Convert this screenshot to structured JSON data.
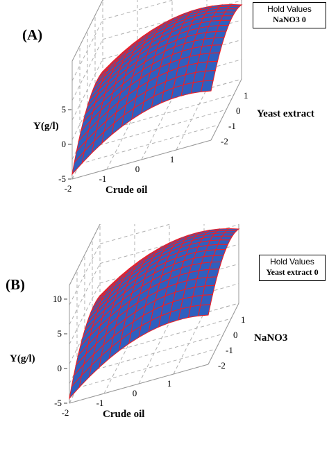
{
  "chart_data": [
    {
      "type": "surface",
      "panel_label": "(A)",
      "hold_values": {
        "title": "Hold Values",
        "value": "NaNO3  0"
      },
      "zlabel": "Y(g/l)",
      "xlabel": "Crude oil",
      "ylabel": "Yeast extract",
      "zticks": [
        "-5",
        "0",
        "5"
      ],
      "xticks": [
        "-2",
        "-1",
        "0",
        "1"
      ],
      "yticks": [
        "-2",
        "-1",
        "0",
        "1"
      ],
      "zlim": [
        -5,
        12
      ],
      "xlim": [
        -2,
        2
      ],
      "ylim": [
        -2,
        2
      ],
      "grid": true,
      "colors": {
        "surface": "#2f5fbf",
        "mesh": "#e8202a",
        "grid": "#b0b0b0"
      }
    },
    {
      "type": "surface",
      "panel_label": "(B)",
      "hold_values": {
        "title": "Hold Values",
        "value": "Yeast extract  0"
      },
      "zlabel": "Y(g/l)",
      "xlabel": "Crude oil",
      "ylabel": "NaNO3",
      "zticks": [
        "-5",
        "0",
        "5",
        "10"
      ],
      "xticks": [
        "-2",
        "-1",
        "0",
        "1"
      ],
      "yticks": [
        "-2",
        "-1",
        "0",
        "1"
      ],
      "zlim": [
        -5,
        12
      ],
      "xlim": [
        -2,
        2
      ],
      "ylim": [
        -2,
        2
      ],
      "grid": true,
      "colors": {
        "surface": "#2f5fbf",
        "mesh": "#e8202a",
        "grid": "#b0b0b0"
      }
    }
  ]
}
